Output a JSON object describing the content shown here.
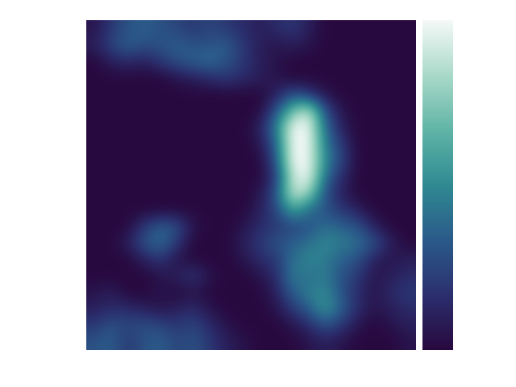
{
  "chart_data": {
    "type": "heatmap",
    "cells": [
      [
        0.05,
        0.2,
        0.3,
        0.35,
        0.3,
        0.25,
        0.2,
        0.25,
        0.2,
        0.15,
        0.1,
        0.15,
        0.2,
        0.1,
        0,
        0,
        0,
        0,
        0,
        0
      ],
      [
        0.1,
        0.25,
        0.35,
        0.3,
        0.3,
        0.35,
        0.3,
        0.3,
        0.35,
        0.2,
        0.1,
        0.05,
        0.1,
        0.05,
        0,
        0,
        0,
        0,
        0,
        0
      ],
      [
        0,
        0.1,
        0.15,
        0.1,
        0.2,
        0.3,
        0.35,
        0.4,
        0.3,
        0.2,
        0.1,
        0.05,
        0,
        0,
        0,
        0,
        0,
        0,
        0,
        0
      ],
      [
        0,
        0,
        0,
        0,
        0,
        0.05,
        0.1,
        0.15,
        0.2,
        0.15,
        0.1,
        0.05,
        0,
        0,
        0,
        0,
        0,
        0,
        0,
        0
      ],
      [
        0,
        0,
        0,
        0,
        0,
        0,
        0,
        0,
        0,
        0,
        0,
        0.1,
        0.3,
        0.2,
        0.05,
        0,
        0,
        0,
        0,
        0
      ],
      [
        0,
        0,
        0,
        0,
        0,
        0,
        0,
        0,
        0,
        0,
        0,
        0.3,
        0.7,
        0.9,
        0.3,
        0.05,
        0,
        0,
        0,
        0
      ],
      [
        0,
        0,
        0,
        0,
        0,
        0,
        0,
        0,
        0,
        0,
        0.1,
        0.45,
        1.0,
        1.0,
        0.4,
        0.1,
        0,
        0,
        0,
        0
      ],
      [
        0,
        0,
        0,
        0,
        0,
        0,
        0,
        0,
        0,
        0,
        0.05,
        0.35,
        1.0,
        1.0,
        0.45,
        0.2,
        0,
        0,
        0,
        0
      ],
      [
        0,
        0,
        0,
        0,
        0,
        0,
        0,
        0,
        0,
        0,
        0,
        0.3,
        1.0,
        1.0,
        0.5,
        0.25,
        0,
        0,
        0,
        0
      ],
      [
        0,
        0,
        0,
        0,
        0,
        0,
        0,
        0,
        0,
        0,
        0,
        0.2,
        0.9,
        1.0,
        0.4,
        0.15,
        0,
        0,
        0,
        0
      ],
      [
        0,
        0,
        0,
        0,
        0,
        0,
        0,
        0,
        0,
        0,
        0.05,
        0.3,
        0.9,
        0.8,
        0.3,
        0.1,
        0,
        0,
        0,
        0
      ],
      [
        0,
        0,
        0,
        0,
        0,
        0,
        0,
        0,
        0,
        0,
        0.1,
        0.25,
        0.6,
        0.4,
        0.3,
        0.2,
        0.1,
        0,
        0,
        0
      ],
      [
        0,
        0,
        0,
        0.2,
        0.35,
        0.3,
        0.05,
        0,
        0,
        0.05,
        0.15,
        0.2,
        0.25,
        0.3,
        0.4,
        0.35,
        0.3,
        0.1,
        0,
        0
      ],
      [
        0,
        0,
        0.1,
        0.3,
        0.4,
        0.2,
        0,
        0,
        0,
        0.1,
        0.2,
        0.3,
        0.35,
        0.4,
        0.5,
        0.45,
        0.4,
        0.3,
        0.1,
        0
      ],
      [
        0,
        0,
        0,
        0.1,
        0.2,
        0.05,
        0,
        0,
        0,
        0.05,
        0.15,
        0.2,
        0.4,
        0.5,
        0.45,
        0.35,
        0.3,
        0.1,
        0.05,
        0.1
      ],
      [
        0,
        0,
        0,
        0,
        0.05,
        0.1,
        0.2,
        0.05,
        0,
        0,
        0.05,
        0.15,
        0.45,
        0.4,
        0.45,
        0.3,
        0.2,
        0.05,
        0.1,
        0.15
      ],
      [
        0.05,
        0.1,
        0,
        0,
        0.05,
        0,
        0.05,
        0,
        0,
        0,
        0,
        0.1,
        0.35,
        0.45,
        0.5,
        0.3,
        0.15,
        0.05,
        0.15,
        0.2
      ],
      [
        0.1,
        0.15,
        0.15,
        0.1,
        0.05,
        0.1,
        0.15,
        0.05,
        0,
        0,
        0,
        0.05,
        0.2,
        0.35,
        0.55,
        0.35,
        0.15,
        0.05,
        0.1,
        0.15
      ],
      [
        0.2,
        0.3,
        0.25,
        0.3,
        0.25,
        0.2,
        0.25,
        0.15,
        0.05,
        0,
        0,
        0,
        0.05,
        0.15,
        0.3,
        0.2,
        0.05,
        0,
        0.05,
        0.1
      ],
      [
        0.3,
        0.35,
        0.2,
        0.3,
        0.35,
        0.25,
        0.3,
        0.2,
        0.1,
        0.05,
        0,
        0,
        0,
        0.05,
        0.1,
        0.05,
        0,
        0,
        0,
        0.05
      ]
    ],
    "clim": [
      0,
      1
    ],
    "tick_labels": false
  }
}
